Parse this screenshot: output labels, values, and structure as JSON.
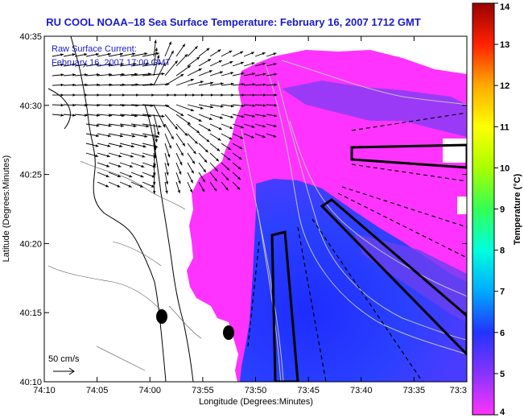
{
  "title": "RU COOL  NOAA–18  Sea Surface Temperature:  February 16, 2007 1712 GMT",
  "legend": {
    "line1": "Raw Surface Current:",
    "line2": "February 16, 2007 17:00 GMT"
  },
  "scale_label": "50 cm/s",
  "axes": {
    "xlabel": "Longitude (Degrees:Minutes)",
    "ylabel": "Latitude (Degrees:Minutes)",
    "x_ticks": [
      "74:10",
      "74:05",
      "74:00",
      "73:55",
      "73:50",
      "73:45",
      "73:40",
      "73:35",
      "73:3"
    ],
    "y_ticks": [
      "40:35",
      "40:30",
      "40:25",
      "40:20",
      "40:15",
      "40:10"
    ]
  },
  "colorbar": {
    "label": "Temperature (°C)",
    "ticks": [
      "14",
      "13",
      "12",
      "11",
      "10",
      "9",
      "8",
      "7",
      "6",
      "5",
      "4"
    ],
    "range": [
      4,
      14
    ]
  },
  "colors": {
    "title": "#1a1acc",
    "sst_warm": "#ff33ff",
    "sst_mid": "#9933ff",
    "sst_cold": "#2233ff"
  }
}
